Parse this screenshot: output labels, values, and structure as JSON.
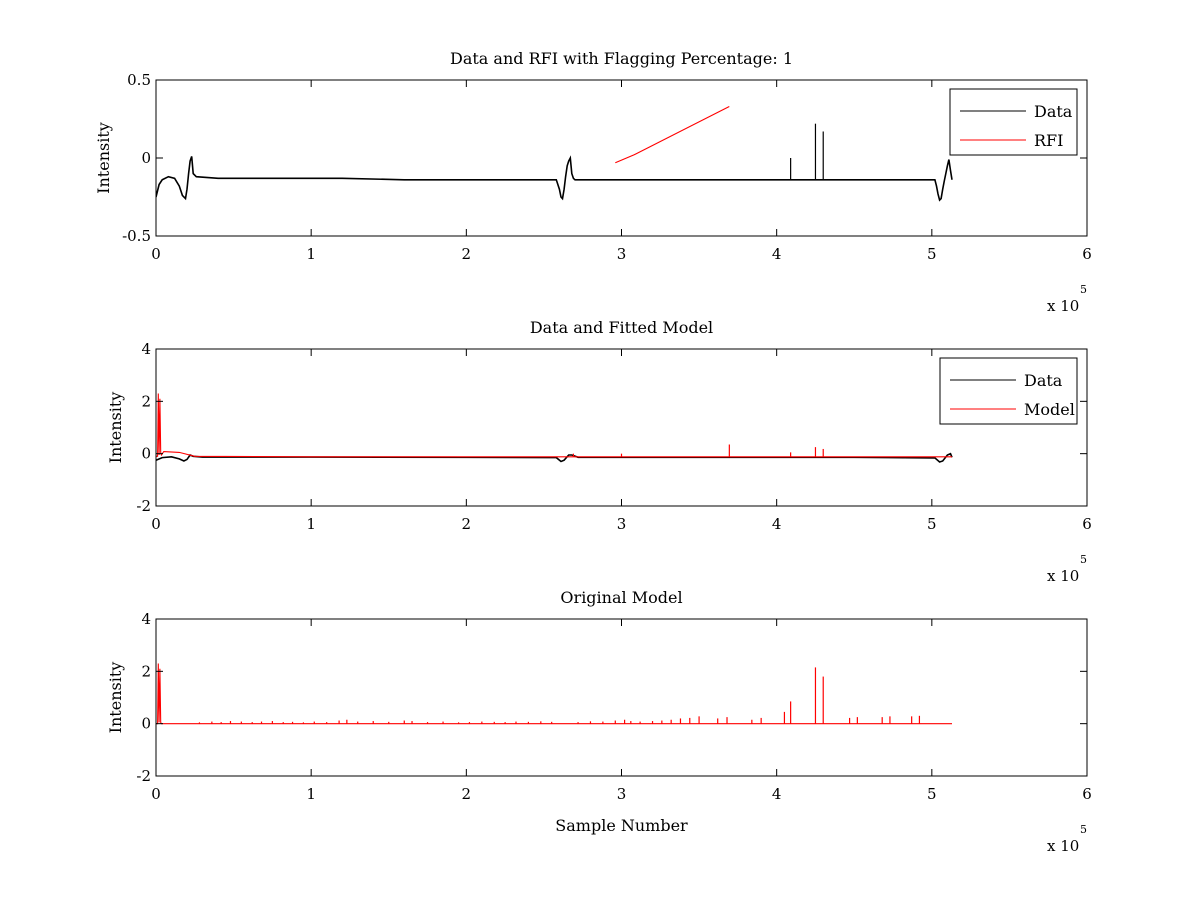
{
  "figure": {
    "background": "#ffffff",
    "colors": {
      "data": "#000000",
      "rfi": "#ff0000",
      "model": "#ff0000"
    }
  },
  "chart_data": [
    {
      "type": "line",
      "title": "Data and RFI with Flagging Percentage: 1",
      "xlabel": "",
      "ylabel": "Intensity",
      "xlim": [
        0,
        600000
      ],
      "ylim": [
        -0.5,
        0.5
      ],
      "xticks": [
        0,
        100000,
        200000,
        300000,
        400000,
        500000,
        600000
      ],
      "xtick_labels": [
        "0",
        "1",
        "2",
        "3",
        "4",
        "5",
        "6"
      ],
      "yticks": [
        -0.5,
        0,
        0.5
      ],
      "ytick_labels": [
        "-0.5",
        "0",
        "0.5"
      ],
      "x_multiplier": {
        "prefix": "x 10",
        "exponent": "5"
      },
      "grid": false,
      "legend": {
        "position": "top-right",
        "entries": [
          "Data",
          "RFI"
        ]
      },
      "series": [
        {
          "name": "Data",
          "color": "#000000",
          "x": [
            0,
            2000,
            4000,
            8000,
            12000,
            15000,
            17000,
            19000,
            20000,
            21000,
            22000,
            23000,
            24000,
            26000,
            40000,
            80000,
            120000,
            160000,
            200000,
            240000,
            258000,
            260000,
            261000,
            262000,
            263000,
            264000,
            265000,
            266000,
            267000,
            268000,
            269000,
            270000,
            272000,
            290000,
            320000,
            360000,
            400000,
            440000,
            480000,
            502000,
            503000,
            504000,
            505000,
            506000,
            507000,
            508000,
            509000,
            510000,
            511000,
            512000,
            513000
          ],
          "y": [
            -0.25,
            -0.17,
            -0.14,
            -0.12,
            -0.13,
            -0.18,
            -0.24,
            -0.26,
            -0.2,
            -0.1,
            -0.02,
            0.01,
            -0.1,
            -0.12,
            -0.13,
            -0.13,
            -0.13,
            -0.14,
            -0.14,
            -0.14,
            -0.14,
            -0.2,
            -0.25,
            -0.26,
            -0.2,
            -0.12,
            -0.05,
            -0.02,
            0.0,
            -0.1,
            -0.13,
            -0.14,
            -0.14,
            -0.14,
            -0.14,
            -0.14,
            -0.14,
            -0.14,
            -0.14,
            -0.14,
            -0.18,
            -0.23,
            -0.27,
            -0.26,
            -0.2,
            -0.15,
            -0.1,
            -0.05,
            -0.01,
            -0.08,
            -0.14
          ]
        },
        {
          "name": "RFI",
          "color": "#ff0000",
          "x": [
            296000,
            308000,
            369500
          ],
          "y": [
            -0.03,
            0.02,
            0.33
          ]
        }
      ],
      "spikes": {
        "color": "#000000",
        "x": [
          409000,
          425000,
          430000
        ],
        "y": [
          0.0,
          0.22,
          0.17
        ]
      }
    },
    {
      "type": "line",
      "title": "Data and Fitted Model",
      "xlabel": "",
      "ylabel": "Intensity",
      "xlim": [
        0,
        600000
      ],
      "ylim": [
        -2,
        4
      ],
      "xticks": [
        0,
        100000,
        200000,
        300000,
        400000,
        500000,
        600000
      ],
      "xtick_labels": [
        "0",
        "1",
        "2",
        "3",
        "4",
        "5",
        "6"
      ],
      "yticks": [
        -2,
        0,
        2,
        4
      ],
      "ytick_labels": [
        "-2",
        "0",
        "2",
        "4"
      ],
      "x_multiplier": {
        "prefix": "x 10",
        "exponent": "5"
      },
      "grid": false,
      "legend": {
        "position": "top-right",
        "entries": [
          "Data",
          "Model"
        ]
      },
      "series": [
        {
          "name": "Data",
          "color": "#000000",
          "x": [
            0,
            4000,
            10000,
            15000,
            18000,
            20000,
            22000,
            24000,
            30000,
            100000,
            200000,
            258000,
            261000,
            263000,
            266000,
            268000,
            272000,
            350000,
            450000,
            502000,
            505000,
            507000,
            510000,
            512000,
            513000
          ],
          "y": [
            -0.25,
            -0.15,
            -0.12,
            -0.2,
            -0.28,
            -0.22,
            -0.05,
            -0.1,
            -0.13,
            -0.13,
            -0.14,
            -0.15,
            -0.3,
            -0.25,
            -0.05,
            -0.05,
            -0.14,
            -0.14,
            -0.14,
            -0.16,
            -0.32,
            -0.28,
            -0.05,
            0.0,
            -0.14
          ]
        },
        {
          "name": "Model",
          "color": "#ff0000",
          "x": [
            0,
            1000,
            1500,
            2000,
            2500,
            3000,
            3500,
            5000,
            15000,
            25000,
            100000,
            200000,
            300000,
            400000,
            500000,
            513000
          ],
          "y": [
            -0.1,
            -0.1,
            2.3,
            -0.05,
            2.1,
            0.05,
            -0.05,
            0.08,
            0.05,
            -0.1,
            -0.12,
            -0.12,
            -0.12,
            -0.12,
            -0.12,
            -0.12
          ]
        }
      ],
      "spikes": {
        "color": "#ff0000",
        "x": [
          269000,
          300000,
          369500,
          409000,
          425000,
          430000
        ],
        "y": [
          0.0,
          0.0,
          0.35,
          0.05,
          0.25,
          0.18
        ]
      }
    },
    {
      "type": "line",
      "title": "Original Model",
      "xlabel": "Sample Number",
      "ylabel": "Intensity",
      "xlim": [
        0,
        600000
      ],
      "ylim": [
        -2,
        4
      ],
      "xticks": [
        0,
        100000,
        200000,
        300000,
        400000,
        500000,
        600000
      ],
      "xtick_labels": [
        "0",
        "1",
        "2",
        "3",
        "4",
        "5",
        "6"
      ],
      "yticks": [
        -2,
        0,
        2,
        4
      ],
      "ytick_labels": [
        "-2",
        "0",
        "2",
        "4"
      ],
      "x_multiplier": {
        "prefix": "x 10",
        "exponent": "5"
      },
      "grid": false,
      "legend": null,
      "series": [
        {
          "name": "Model",
          "color": "#ff0000",
          "x": [
            0,
            1000,
            1500,
            2000,
            2500,
            3000,
            3500,
            513000
          ],
          "y": [
            0,
            0,
            2.3,
            0.05,
            2.1,
            0.05,
            0,
            0
          ]
        }
      ],
      "spikes": {
        "color": "#ff0000",
        "x": [
          28000,
          36000,
          42000,
          48000,
          55000,
          62000,
          68000,
          75000,
          82000,
          88000,
          95000,
          102000,
          110000,
          118000,
          123000,
          130000,
          140000,
          150000,
          160000,
          165000,
          175000,
          185000,
          195000,
          202000,
          210000,
          218000,
          225000,
          232000,
          240000,
          248000,
          255000,
          272000,
          280000,
          288000,
          296000,
          302000,
          306000,
          312000,
          320000,
          326000,
          332000,
          338000,
          344000,
          350000,
          362000,
          368000,
          384000,
          390000,
          405000,
          409000,
          425000,
          430000,
          447000,
          452000,
          468000,
          473000,
          487000,
          492000
        ],
        "y": [
          0.05,
          0.08,
          0.06,
          0.1,
          0.08,
          0.06,
          0.08,
          0.1,
          0.06,
          0.07,
          0.05,
          0.08,
          0.06,
          0.12,
          0.15,
          0.08,
          0.1,
          0.07,
          0.12,
          0.1,
          0.06,
          0.08,
          0.05,
          0.06,
          0.08,
          0.07,
          0.06,
          0.08,
          0.07,
          0.09,
          0.07,
          0.06,
          0.09,
          0.08,
          0.12,
          0.15,
          0.1,
          0.08,
          0.1,
          0.12,
          0.15,
          0.2,
          0.22,
          0.28,
          0.2,
          0.25,
          0.15,
          0.22,
          0.45,
          0.85,
          2.15,
          1.8,
          0.22,
          0.25,
          0.25,
          0.28,
          0.28,
          0.3
        ]
      }
    }
  ]
}
